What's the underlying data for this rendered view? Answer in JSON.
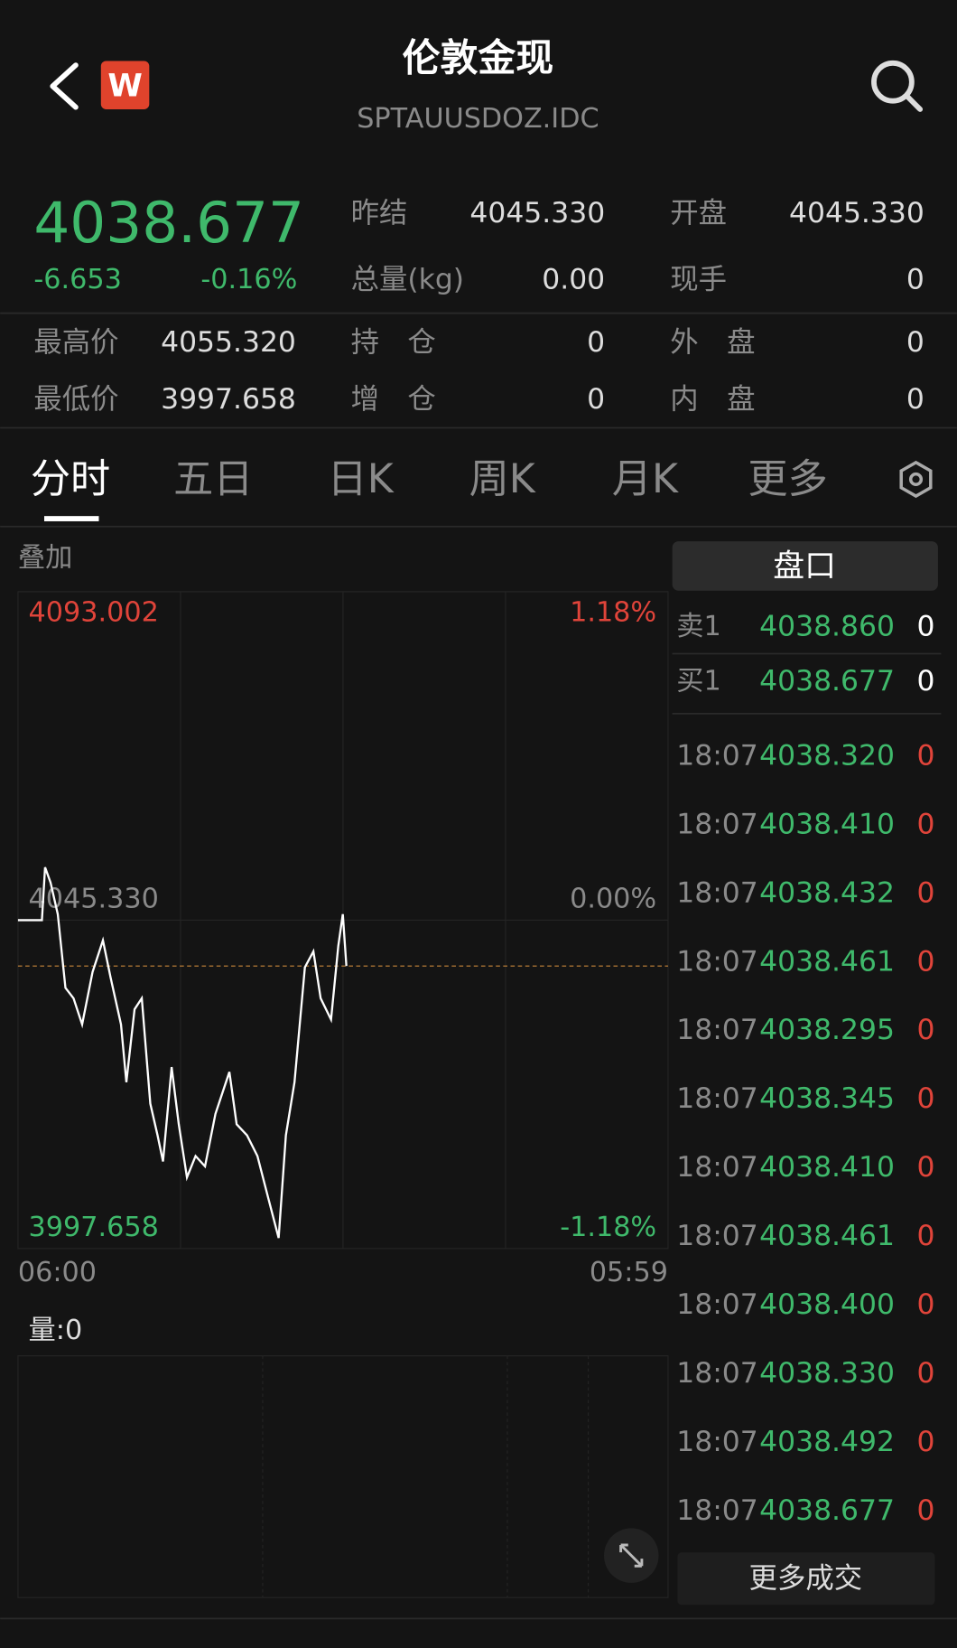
{
  "header": {
    "title": "伦敦金现",
    "subtitle": "SPTAUUSDOZ.IDC",
    "badge": "W"
  },
  "quote": {
    "price": "4038.677",
    "change": "-6.653",
    "change_pct": "-0.16%",
    "stats": [
      [
        {
          "label": "昨结",
          "value": "4045.330"
        },
        {
          "label": "开盘",
          "value": "4045.330"
        }
      ],
      [
        {
          "label": "总量(kg)",
          "value": "0.00"
        },
        {
          "label": "现手",
          "value": "0"
        }
      ]
    ],
    "extremes": [
      [
        {
          "label": "最高价",
          "value": "4055.320"
        },
        {
          "label": "持　仓",
          "value": "0"
        },
        {
          "label": "外　盘",
          "value": "0"
        }
      ],
      [
        {
          "label": "最低价",
          "value": "3997.658"
        },
        {
          "label": "增　仓",
          "value": "0"
        },
        {
          "label": "内　盘",
          "value": "0"
        }
      ]
    ]
  },
  "tabs": [
    "分时",
    "五日",
    "日K",
    "周K",
    "月K",
    "更多"
  ],
  "overlay": "叠加",
  "chart_data": {
    "type": "line",
    "color": "#ffffff",
    "x": [
      "06:00",
      "06:53",
      "07:00",
      "07:12",
      "07:28",
      "07:45",
      "08:03",
      "08:22",
      "08:45",
      "09:08",
      "09:25",
      "09:48",
      "10:00",
      "10:18",
      "10:34",
      "10:53",
      "11:09",
      "11:21",
      "11:40",
      "11:56",
      "12:14",
      "12:33",
      "12:54",
      "13:17",
      "13:48",
      "14:04",
      "14:27",
      "14:50",
      "15:14",
      "15:37",
      "15:53",
      "16:12",
      "16:35",
      "16:54",
      "17:10",
      "17:33",
      "17:49",
      "17:59",
      "18:07"
    ],
    "values": [
      4045.33,
      4045.33,
      4053.0,
      4050.8,
      4046.2,
      4035.5,
      4034.0,
      4030.2,
      4037.8,
      4042.4,
      4037.0,
      4030.2,
      4021.8,
      4032.4,
      4034.0,
      4018.7,
      4014.1,
      4010.3,
      4024.0,
      4015.7,
      4008.0,
      4011.1,
      4009.6,
      4017.2,
      4023.3,
      4015.7,
      4014.1,
      4011.1,
      4005.0,
      3999.2,
      4014.1,
      4021.8,
      4038.5,
      4040.8,
      4034.0,
      4030.9,
      4041.6,
      4046.2,
      4038.677
    ],
    "xlim": [
      "06:00",
      "05:59"
    ],
    "xticks": [
      "06:00",
      "05:59"
    ],
    "ylim": [
      3997.658,
      4093.002
    ],
    "yticks": [
      {
        "value": 4093.002,
        "label": "4093.002"
      },
      {
        "value": 4045.33,
        "label": "4045.330"
      },
      {
        "value": 3997.658,
        "label": "3997.658"
      }
    ],
    "y2lim": [
      -1.18,
      1.18
    ],
    "y2ticks": [
      {
        "value": 1.18,
        "label": "1.18%"
      },
      {
        "value": 0,
        "label": "0.00%"
      },
      {
        "value": -1.18,
        "label": "-1.18%"
      }
    ],
    "volume_label": "量:0"
  },
  "order_book": {
    "title": "盘口",
    "levels": [
      {
        "side": "卖1",
        "price": "4038.860",
        "volume": "0"
      },
      {
        "side": "买1",
        "price": "4038.677",
        "volume": "0"
      }
    ],
    "trades": [
      {
        "time": "18:07",
        "price": "4038.320",
        "volume": "0"
      },
      {
        "time": "18:07",
        "price": "4038.410",
        "volume": "0"
      },
      {
        "time": "18:07",
        "price": "4038.432",
        "volume": "0"
      },
      {
        "time": "18:07",
        "price": "4038.461",
        "volume": "0"
      },
      {
        "time": "18:07",
        "price": "4038.295",
        "volume": "0"
      },
      {
        "time": "18:07",
        "price": "4038.345",
        "volume": "0"
      },
      {
        "time": "18:07",
        "price": "4038.410",
        "volume": "0"
      },
      {
        "time": "18:07",
        "price": "4038.461",
        "volume": "0"
      },
      {
        "time": "18:07",
        "price": "4038.400",
        "volume": "0"
      },
      {
        "time": "18:07",
        "price": "4038.330",
        "volume": "0"
      },
      {
        "time": "18:07",
        "price": "4038.492",
        "volume": "0"
      },
      {
        "time": "18:07",
        "price": "4038.677",
        "volume": "0"
      }
    ],
    "more": "更多成交"
  }
}
